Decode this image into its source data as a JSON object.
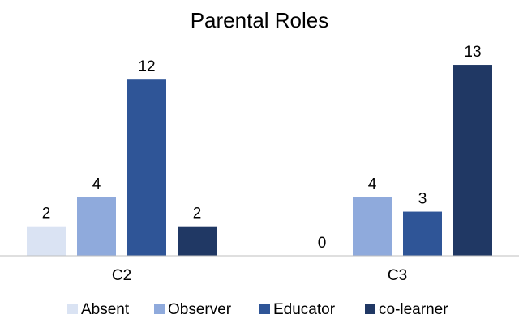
{
  "chart_data": {
    "type": "bar",
    "title": "Parental Roles",
    "categories": [
      "C2",
      "C3"
    ],
    "series": [
      {
        "name": "Absent",
        "values": [
          2,
          0
        ],
        "color": "#dae3f3"
      },
      {
        "name": "Observer",
        "values": [
          4,
          4
        ],
        "color": "#8faadc"
      },
      {
        "name": "Educator",
        "values": [
          12,
          3
        ],
        "color": "#2f5597"
      },
      {
        "name": "co-learner",
        "values": [
          2,
          13
        ],
        "color": "#203864"
      }
    ],
    "ylim": [
      0,
      14
    ],
    "grid": false,
    "legend": "bottom",
    "axis_color": "#bfbfbf"
  }
}
